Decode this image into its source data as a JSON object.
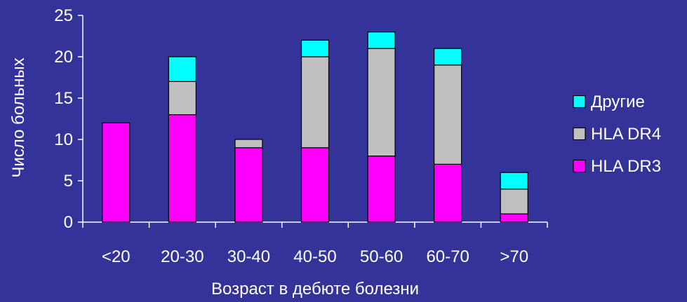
{
  "chart_data": {
    "type": "bar",
    "stacked": true,
    "title": "",
    "xlabel": "Возраст в дебюте болезни",
    "ylabel": "Число больных",
    "ylim": [
      0,
      25
    ],
    "yticks": [
      "0",
      "5",
      "10",
      "15",
      "20",
      "25"
    ],
    "categories": [
      "<20",
      "20-30",
      "30-40",
      "40-50",
      "50-60",
      "60-70",
      ">70"
    ],
    "series": [
      {
        "name": "HLA DR3",
        "color": "#ff00ff",
        "values": [
          12,
          13,
          9,
          9,
          8,
          7,
          1
        ]
      },
      {
        "name": "HLA DR4",
        "color": "#c0c0c0",
        "values": [
          0,
          4,
          1,
          11,
          13,
          12,
          3
        ]
      },
      {
        "name": "Другие",
        "color": "#00ffff",
        "values": [
          0,
          3,
          0,
          2,
          2,
          2,
          2
        ]
      }
    ],
    "legend_order": [
      "Другие",
      "HLA DR4",
      "HLA DR3"
    ],
    "legend_position": "right",
    "grid": false,
    "colors": {
      "background": "#333399",
      "axis": "#ffffff",
      "text": "#ffffff"
    }
  }
}
